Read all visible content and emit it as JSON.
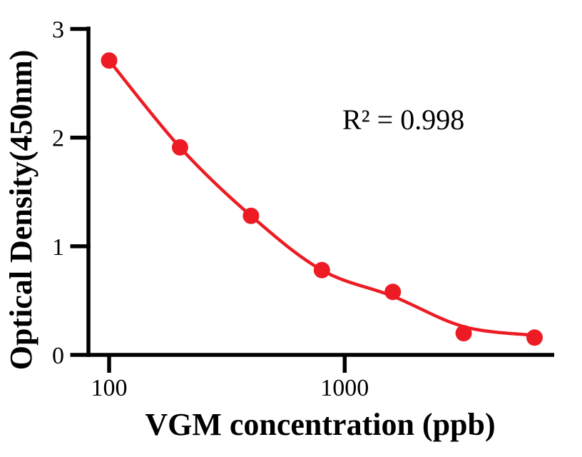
{
  "chart_data": {
    "type": "scatter",
    "title": "",
    "xlabel": "VGM concentration (ppb)",
    "ylabel": "Optical Density(450nm)",
    "annotation": "R² = 0.998",
    "x_scale": "log",
    "y_scale": "linear",
    "x": [
      100,
      200,
      400,
      800,
      1600,
      3200,
      6400
    ],
    "y": [
      2.71,
      1.91,
      1.28,
      0.78,
      0.58,
      0.2,
      0.16
    ],
    "fit_curve": {
      "x": [
        100,
        200,
        400,
        800,
        1600,
        3200,
        6400
      ],
      "y": [
        2.71,
        1.91,
        1.28,
        0.78,
        0.54,
        0.26,
        0.18
      ]
    },
    "x_ticks": {
      "values": [
        100,
        1000
      ],
      "labels": [
        "100",
        "1000"
      ]
    },
    "y_ticks": {
      "values": [
        0,
        1,
        2,
        3
      ],
      "labels": [
        "0",
        "1",
        "2",
        "3"
      ]
    },
    "xlim": [
      80,
      7750
    ],
    "ylim": [
      0,
      3.02
    ],
    "grid": false,
    "legend": "none",
    "colors": {
      "series": "#ED1C24",
      "axis": "#000000",
      "text": "#000000"
    }
  }
}
